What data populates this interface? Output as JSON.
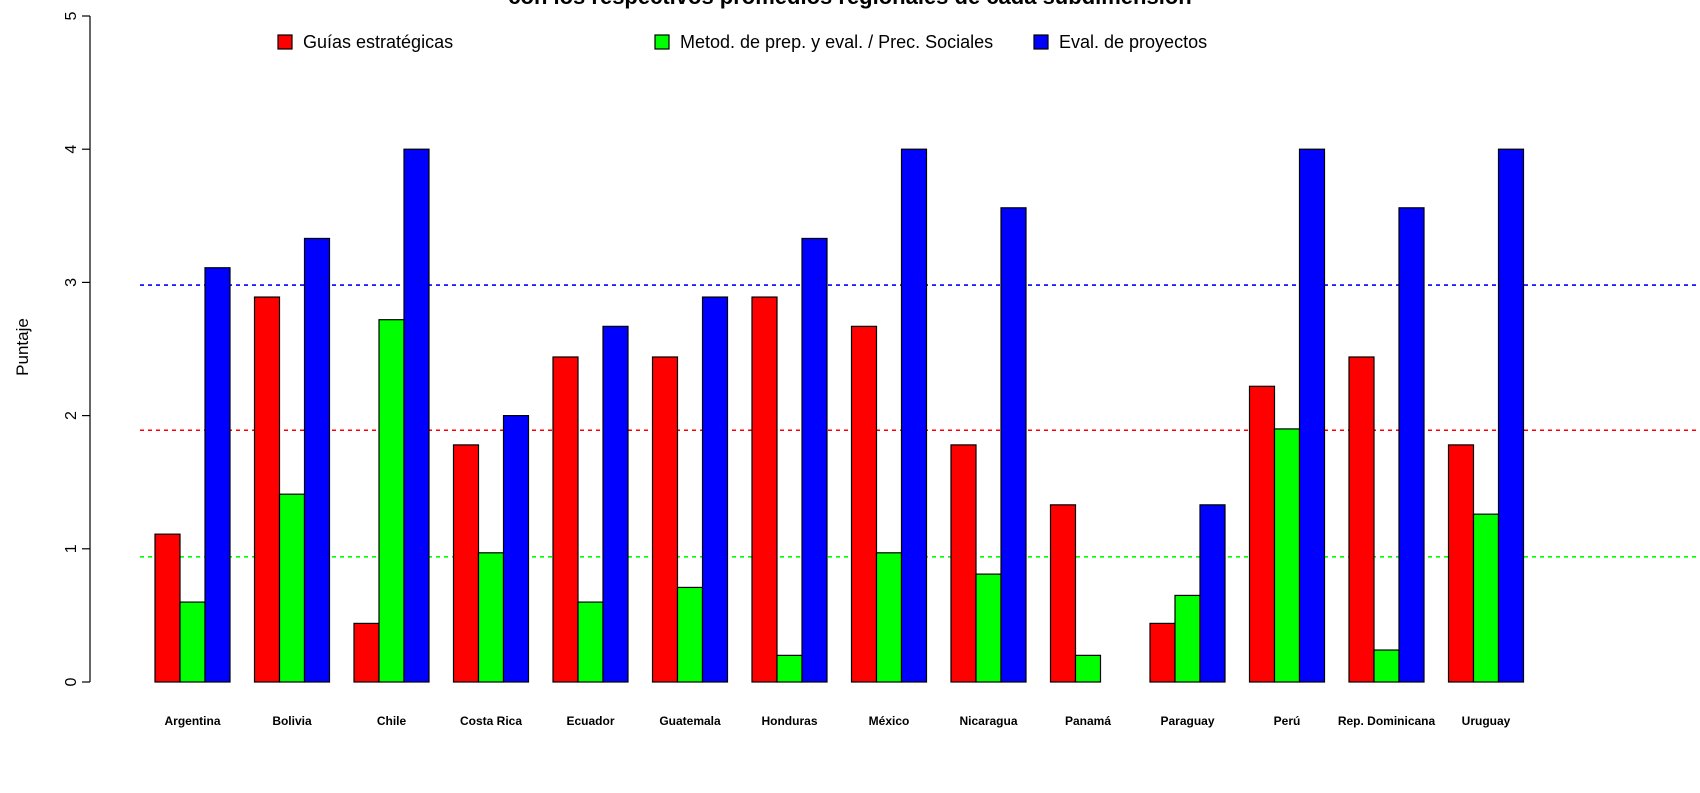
{
  "chart_data": {
    "type": "bar",
    "title": "con los respectivos promedios regionales de cada subdimensión",
    "xlabel": "",
    "ylabel": "Puntaje",
    "ylim": [
      0,
      5
    ],
    "yticks": [
      "0",
      "1",
      "2",
      "3",
      "4",
      "5"
    ],
    "legend_position": "top",
    "categories": [
      "Argentina",
      "Bolivia",
      "Chile",
      "Costa Rica",
      "Ecuador",
      "Guatemala",
      "Honduras",
      "México",
      "Nicaragua",
      "Panamá",
      "Paraguay",
      "Perú",
      "Rep. Dominicana",
      "Uruguay"
    ],
    "series": [
      {
        "name": "Guías estratégicas",
        "color": "#ff0000",
        "values": [
          1.11,
          2.89,
          0.44,
          1.78,
          2.44,
          2.44,
          2.89,
          2.67,
          1.78,
          1.33,
          0.44,
          2.22,
          2.44,
          1.78
        ]
      },
      {
        "name": "Metod. de prep. y eval. / Prec. Sociales",
        "color": "#00ff00",
        "values": [
          0.6,
          1.41,
          2.72,
          0.97,
          0.6,
          0.71,
          0.2,
          0.97,
          0.81,
          0.2,
          0.65,
          1.9,
          0.24,
          1.26
        ]
      },
      {
        "name": "Eval. de proyectos",
        "color": "#0000ff",
        "values": [
          3.11,
          3.33,
          4.0,
          2.0,
          2.67,
          2.89,
          3.33,
          4.0,
          3.56,
          0.0,
          1.33,
          4.0,
          3.56,
          4.0
        ]
      }
    ],
    "reference_lines": [
      {
        "value": 2.98,
        "color": "#0000ff",
        "style": "dashed"
      },
      {
        "value": 1.89,
        "color": "#ff0000",
        "style": "dashed"
      },
      {
        "value": 0.94,
        "color": "#00ff00",
        "style": "dashed"
      }
    ],
    "grid": false
  }
}
